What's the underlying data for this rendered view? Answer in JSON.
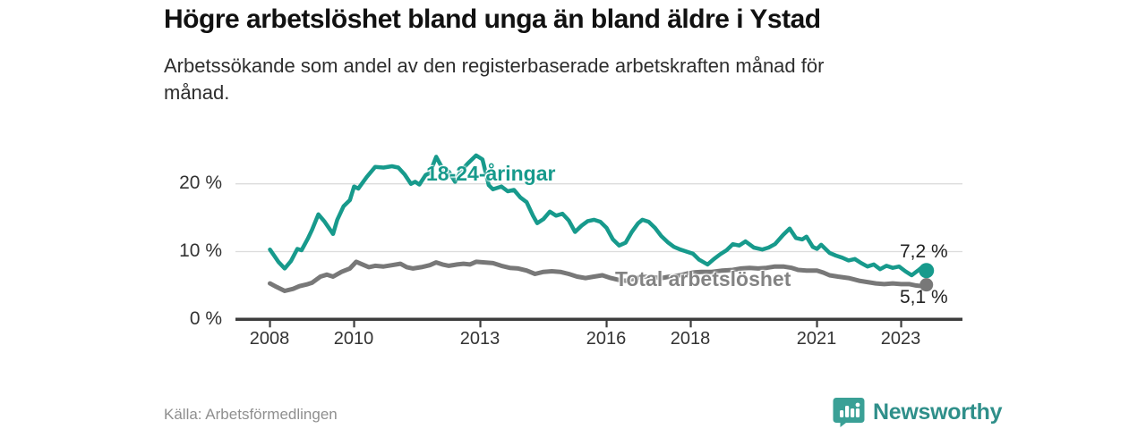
{
  "chart_data": {
    "type": "line",
    "title": "Högre arbetslöshet bland unga än bland äldre i Ystad",
    "subtitle_line1": "Arbetssökande som andel av den registerbaserade arbetskraften månad för",
    "subtitle_line2": "månad.",
    "source": "Källa: Arbetsförmedlingen",
    "xlabel": "",
    "ylabel": "",
    "grid": "horizontal",
    "legend_position": "inline-labels",
    "x_range_years": [
      2008,
      2023.6
    ],
    "ylim": [
      0,
      25
    ],
    "y_axis": {
      "ticks": [
        {
          "value": 20,
          "label": "20 %"
        },
        {
          "value": 10,
          "label": "10 %"
        },
        {
          "value": 0,
          "label": "0 %"
        }
      ]
    },
    "x_axis": {
      "ticks": [
        {
          "year": 2008,
          "label": "2008"
        },
        {
          "year": 2010,
          "label": "2010"
        },
        {
          "year": 2013,
          "label": "2013"
        },
        {
          "year": 2016,
          "label": "2016"
        },
        {
          "year": 2018,
          "label": "2018"
        },
        {
          "year": 2021,
          "label": "2021"
        },
        {
          "year": 2023,
          "label": "2023"
        }
      ]
    },
    "series": [
      {
        "id": "youth",
        "name": "18-24-åringar",
        "color": "#179a8c",
        "line_width": 4.5,
        "end_dot_radius": 8.5,
        "end_label": "7,2 %",
        "end_value": 7.2,
        "points": [
          [
            2008.0,
            10.3
          ],
          [
            2008.1,
            9.4
          ],
          [
            2008.2,
            8.5
          ],
          [
            2008.35,
            7.5
          ],
          [
            2008.5,
            8.6
          ],
          [
            2008.65,
            10.4
          ],
          [
            2008.75,
            10.2
          ],
          [
            2008.9,
            11.9
          ],
          [
            2009.0,
            13.2
          ],
          [
            2009.15,
            15.5
          ],
          [
            2009.3,
            14.4
          ],
          [
            2009.5,
            12.6
          ],
          [
            2009.6,
            14.7
          ],
          [
            2009.75,
            16.7
          ],
          [
            2009.9,
            17.6
          ],
          [
            2010.0,
            19.6
          ],
          [
            2010.1,
            19.3
          ],
          [
            2010.3,
            21.0
          ],
          [
            2010.5,
            22.5
          ],
          [
            2010.7,
            22.4
          ],
          [
            2010.9,
            22.6
          ],
          [
            2011.05,
            22.4
          ],
          [
            2011.2,
            21.4
          ],
          [
            2011.35,
            20.0
          ],
          [
            2011.45,
            20.3
          ],
          [
            2011.55,
            19.9
          ],
          [
            2011.7,
            21.3
          ],
          [
            2011.8,
            21.6
          ],
          [
            2011.95,
            24.0
          ],
          [
            2012.1,
            22.3
          ],
          [
            2012.25,
            21.8
          ],
          [
            2012.4,
            20.3
          ],
          [
            2012.55,
            22.0
          ],
          [
            2012.7,
            23.0
          ],
          [
            2012.9,
            24.2
          ],
          [
            2013.05,
            23.6
          ],
          [
            2013.2,
            19.8
          ],
          [
            2013.3,
            19.2
          ],
          [
            2013.5,
            19.6
          ],
          [
            2013.65,
            18.9
          ],
          [
            2013.8,
            19.1
          ],
          [
            2013.95,
            18.0
          ],
          [
            2014.1,
            17.3
          ],
          [
            2014.25,
            15.3
          ],
          [
            2014.35,
            14.2
          ],
          [
            2014.5,
            14.8
          ],
          [
            2014.65,
            15.9
          ],
          [
            2014.8,
            15.3
          ],
          [
            2014.95,
            15.6
          ],
          [
            2015.1,
            14.6
          ],
          [
            2015.25,
            12.9
          ],
          [
            2015.4,
            13.8
          ],
          [
            2015.55,
            14.5
          ],
          [
            2015.7,
            14.7
          ],
          [
            2015.85,
            14.4
          ],
          [
            2016.0,
            13.5
          ],
          [
            2016.15,
            11.8
          ],
          [
            2016.3,
            10.9
          ],
          [
            2016.45,
            11.3
          ],
          [
            2016.6,
            12.9
          ],
          [
            2016.75,
            14.2
          ],
          [
            2016.85,
            14.7
          ],
          [
            2017.0,
            14.4
          ],
          [
            2017.15,
            13.5
          ],
          [
            2017.3,
            12.3
          ],
          [
            2017.45,
            11.4
          ],
          [
            2017.6,
            10.7
          ],
          [
            2017.75,
            10.3
          ],
          [
            2017.9,
            10.0
          ],
          [
            2018.05,
            9.7
          ],
          [
            2018.2,
            8.8
          ],
          [
            2018.4,
            8.1
          ],
          [
            2018.55,
            8.9
          ],
          [
            2018.7,
            9.6
          ],
          [
            2018.85,
            10.2
          ],
          [
            2019.0,
            11.1
          ],
          [
            2019.15,
            10.9
          ],
          [
            2019.3,
            11.5
          ],
          [
            2019.5,
            10.6
          ],
          [
            2019.7,
            10.3
          ],
          [
            2019.85,
            10.6
          ],
          [
            2020.0,
            11.1
          ],
          [
            2020.2,
            12.5
          ],
          [
            2020.35,
            13.4
          ],
          [
            2020.5,
            12.0
          ],
          [
            2020.65,
            11.8
          ],
          [
            2020.75,
            12.2
          ],
          [
            2020.9,
            10.7
          ],
          [
            2021.0,
            10.4
          ],
          [
            2021.1,
            11.0
          ],
          [
            2021.3,
            9.8
          ],
          [
            2021.45,
            9.4
          ],
          [
            2021.6,
            9.1
          ],
          [
            2021.75,
            8.7
          ],
          [
            2021.9,
            8.9
          ],
          [
            2022.05,
            8.3
          ],
          [
            2022.2,
            7.8
          ],
          [
            2022.35,
            8.1
          ],
          [
            2022.5,
            7.4
          ],
          [
            2022.65,
            7.9
          ],
          [
            2022.8,
            7.6
          ],
          [
            2022.95,
            7.8
          ],
          [
            2023.1,
            7.1
          ],
          [
            2023.25,
            6.5
          ],
          [
            2023.4,
            7.2
          ],
          [
            2023.5,
            7.7
          ],
          [
            2023.6,
            7.2
          ]
        ]
      },
      {
        "id": "total",
        "name": "Total arbetslöshet",
        "color": "#787878",
        "line_width": 5,
        "end_dot_radius": 7.5,
        "end_label": "5,1 %",
        "end_value": 5.1,
        "points": [
          [
            2008.0,
            5.3
          ],
          [
            2008.15,
            4.8
          ],
          [
            2008.35,
            4.2
          ],
          [
            2008.55,
            4.5
          ],
          [
            2008.7,
            4.9
          ],
          [
            2008.9,
            5.2
          ],
          [
            2009.0,
            5.4
          ],
          [
            2009.2,
            6.3
          ],
          [
            2009.35,
            6.6
          ],
          [
            2009.5,
            6.3
          ],
          [
            2009.7,
            7.0
          ],
          [
            2009.9,
            7.5
          ],
          [
            2010.05,
            8.5
          ],
          [
            2010.2,
            8.1
          ],
          [
            2010.35,
            7.7
          ],
          [
            2010.5,
            7.9
          ],
          [
            2010.7,
            7.8
          ],
          [
            2010.9,
            8.0
          ],
          [
            2011.1,
            8.2
          ],
          [
            2011.25,
            7.7
          ],
          [
            2011.4,
            7.5
          ],
          [
            2011.6,
            7.7
          ],
          [
            2011.8,
            8.0
          ],
          [
            2011.95,
            8.4
          ],
          [
            2012.1,
            8.1
          ],
          [
            2012.25,
            7.9
          ],
          [
            2012.45,
            8.1
          ],
          [
            2012.6,
            8.2
          ],
          [
            2012.75,
            8.1
          ],
          [
            2012.9,
            8.5
          ],
          [
            2013.1,
            8.4
          ],
          [
            2013.3,
            8.3
          ],
          [
            2013.5,
            7.9
          ],
          [
            2013.7,
            7.6
          ],
          [
            2013.9,
            7.5
          ],
          [
            2014.1,
            7.2
          ],
          [
            2014.3,
            6.7
          ],
          [
            2014.5,
            7.0
          ],
          [
            2014.7,
            7.1
          ],
          [
            2014.9,
            7.0
          ],
          [
            2015.1,
            6.7
          ],
          [
            2015.3,
            6.3
          ],
          [
            2015.5,
            6.1
          ],
          [
            2015.7,
            6.3
          ],
          [
            2015.9,
            6.5
          ],
          [
            2016.1,
            6.1
          ],
          [
            2016.3,
            5.8
          ],
          [
            2016.45,
            5.7
          ],
          [
            2016.65,
            6.0
          ],
          [
            2016.9,
            6.3
          ],
          [
            2017.1,
            6.2
          ],
          [
            2017.3,
            6.1
          ],
          [
            2017.5,
            6.3
          ],
          [
            2017.75,
            6.5
          ],
          [
            2018.0,
            6.9
          ],
          [
            2018.25,
            7.0
          ],
          [
            2018.5,
            7.0
          ],
          [
            2018.75,
            7.2
          ],
          [
            2019.0,
            7.3
          ],
          [
            2019.2,
            7.5
          ],
          [
            2019.4,
            7.6
          ],
          [
            2019.6,
            7.5
          ],
          [
            2019.8,
            7.6
          ],
          [
            2020.0,
            7.8
          ],
          [
            2020.2,
            7.8
          ],
          [
            2020.4,
            7.6
          ],
          [
            2020.55,
            7.3
          ],
          [
            2020.75,
            7.2
          ],
          [
            2021.0,
            7.2
          ],
          [
            2021.15,
            6.9
          ],
          [
            2021.3,
            6.5
          ],
          [
            2021.5,
            6.3
          ],
          [
            2021.75,
            6.1
          ],
          [
            2022.0,
            5.7
          ],
          [
            2022.2,
            5.5
          ],
          [
            2022.4,
            5.3
          ],
          [
            2022.6,
            5.2
          ],
          [
            2022.8,
            5.3
          ],
          [
            2023.0,
            5.2
          ],
          [
            2023.2,
            5.2
          ],
          [
            2023.35,
            5.0
          ],
          [
            2023.5,
            4.9
          ],
          [
            2023.6,
            5.1
          ]
        ]
      }
    ]
  },
  "footer": {
    "brand_name": "Newsworthy",
    "brand_color": "#2f8f8a",
    "brand_icon": "newsworthy-speech-bubble-bar-chart-icon",
    "brand_icon_color": "#3aa096"
  },
  "colors": {
    "axis": "#3d3d3d",
    "gridline": "#dcdcdc",
    "tick_text": "#333333",
    "value_label_text": "#222222"
  }
}
